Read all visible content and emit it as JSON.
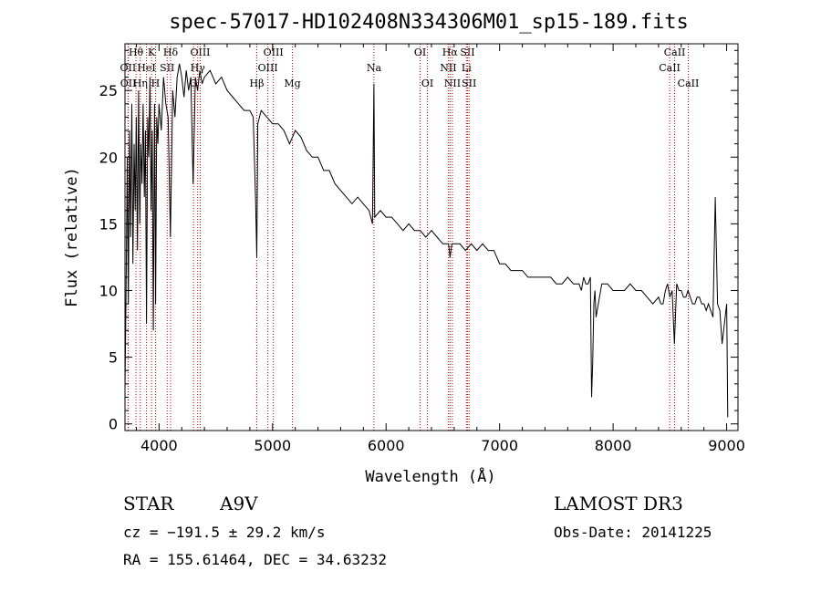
{
  "chart_data": {
    "type": "line",
    "title": "spec-57017-HD102408N334306M01_sp15-189.fits",
    "xlabel": "Wavelength (Å)",
    "ylabel": "Flux (relative)",
    "xlim": [
      3700,
      9100
    ],
    "ylim": [
      -0.5,
      28.5
    ],
    "x_ticks": [
      4000,
      5000,
      6000,
      7000,
      8000,
      9000
    ],
    "y_ticks": [
      0,
      5,
      10,
      15,
      20,
      25
    ],
    "series": [
      {
        "name": "spectrum",
        "x": [
          3700,
          3710,
          3720,
          3730,
          3740,
          3750,
          3760,
          3770,
          3780,
          3790,
          3800,
          3810,
          3820,
          3830,
          3840,
          3850,
          3860,
          3870,
          3880,
          3890,
          3900,
          3910,
          3920,
          3930,
          3940,
          3950,
          3960,
          3970,
          3980,
          3990,
          4000,
          4020,
          4040,
          4060,
          4080,
          4100,
          4120,
          4140,
          4160,
          4180,
          4200,
          4220,
          4240,
          4260,
          4280,
          4300,
          4320,
          4340,
          4360,
          4380,
          4400,
          4450,
          4500,
          4550,
          4600,
          4650,
          4700,
          4750,
          4800,
          4830,
          4850,
          4861,
          4870,
          4900,
          4950,
          5000,
          5050,
          5100,
          5150,
          5200,
          5250,
          5300,
          5350,
          5400,
          5450,
          5500,
          5550,
          5600,
          5650,
          5700,
          5750,
          5800,
          5850,
          5880,
          5893,
          5900,
          5950,
          6000,
          6050,
          6100,
          6150,
          6200,
          6250,
          6300,
          6350,
          6400,
          6450,
          6500,
          6550,
          6563,
          6580,
          6600,
          6650,
          6700,
          6750,
          6800,
          6850,
          6900,
          6950,
          7000,
          7050,
          7100,
          7150,
          7200,
          7250,
          7300,
          7350,
          7400,
          7450,
          7500,
          7550,
          7600,
          7650,
          7700,
          7720,
          7740,
          7760,
          7780,
          7800,
          7810,
          7820,
          7830,
          7840,
          7850,
          7900,
          7950,
          8000,
          8050,
          8100,
          8150,
          8200,
          8250,
          8300,
          8350,
          8400,
          8420,
          8440,
          8460,
          8480,
          8500,
          8520,
          8540,
          8560,
          8580,
          8600,
          8620,
          8640,
          8660,
          8680,
          8700,
          8720,
          8740,
          8760,
          8780,
          8800,
          8820,
          8840,
          8860,
          8880,
          8900,
          8920,
          8940,
          8960,
          8980,
          9000,
          9010
        ],
        "values": [
          2.5,
          10.0,
          20.0,
          9.0,
          22.0,
          14.0,
          24.0,
          12.0,
          21.0,
          16.0,
          23.0,
          13.0,
          25.0,
          15.0,
          21.0,
          18.0,
          24.0,
          17.0,
          22.0,
          7.5,
          23.0,
          20.0,
          26.0,
          16.0,
          22.0,
          7.0,
          24.0,
          9.0,
          23.0,
          21.0,
          24.0,
          22.0,
          26.0,
          24.0,
          23.0,
          14.0,
          25.0,
          23.0,
          26.0,
          27.0,
          26.0,
          24.5,
          26.5,
          25.0,
          26.0,
          18.0,
          26.0,
          25.0,
          26.5,
          25.5,
          26.0,
          26.5,
          25.5,
          26.0,
          25.0,
          24.5,
          24.0,
          23.5,
          23.5,
          23.0,
          17.0,
          12.5,
          22.5,
          23.5,
          23.0,
          22.5,
          22.5,
          22.0,
          21.0,
          22.0,
          21.5,
          20.5,
          20.0,
          20.0,
          19.0,
          19.0,
          18.0,
          17.5,
          17.0,
          16.5,
          17.0,
          16.5,
          16.0,
          15.0,
          25.5,
          15.5,
          16.0,
          15.5,
          15.5,
          15.0,
          14.5,
          15.0,
          14.5,
          14.5,
          14.0,
          14.5,
          14.0,
          13.5,
          13.5,
          12.5,
          13.5,
          13.5,
          13.5,
          13.0,
          13.5,
          13.0,
          13.5,
          13.0,
          13.0,
          12.0,
          12.0,
          11.5,
          11.5,
          11.5,
          11.0,
          11.0,
          11.0,
          11.0,
          11.0,
          10.5,
          10.5,
          11.0,
          10.5,
          10.5,
          10.0,
          11.0,
          10.5,
          10.5,
          11.0,
          2.0,
          4.5,
          9.0,
          10.0,
          8.0,
          10.5,
          10.5,
          10.0,
          10.0,
          10.0,
          10.5,
          10.0,
          10.0,
          9.5,
          9.0,
          9.5,
          9.0,
          9.0,
          10.0,
          10.5,
          9.5,
          10.0,
          6.0,
          10.5,
          10.0,
          10.0,
          9.5,
          9.5,
          10.0,
          9.5,
          9.0,
          9.0,
          9.5,
          9.5,
          9.0,
          9.0,
          8.5,
          9.0,
          8.5,
          8.0,
          17.0,
          9.0,
          8.5,
          6.0,
          7.5,
          9.0,
          0.5
        ]
      }
    ],
    "emission_lines": [
      {
        "label": "Hθ",
        "wavelength": 3797,
        "row": 1
      },
      {
        "label": "OII",
        "wavelength": 3727,
        "row": 2
      },
      {
        "label": "OII",
        "wavelength": 3729,
        "row": 3
      },
      {
        "label": "HeI",
        "wavelength": 3889,
        "row": 2
      },
      {
        "label": "Hη",
        "wavelength": 3835,
        "row": 3
      },
      {
        "label": "K",
        "wavelength": 3934,
        "row": 1
      },
      {
        "label": "H",
        "wavelength": 3969,
        "row": 3
      },
      {
        "label": "SII",
        "wavelength": 4072,
        "row": 2
      },
      {
        "label": "Hδ",
        "wavelength": 4102,
        "row": 1
      },
      {
        "label": "OIII",
        "wavelength": 4363,
        "row": 1
      },
      {
        "label": "Hγ",
        "wavelength": 4341,
        "row": 2
      },
      {
        "label": "G",
        "wavelength": 4304,
        "row": 3
      },
      {
        "label": "Hβ",
        "wavelength": 4861,
        "row": 3
      },
      {
        "label": "OIII",
        "wavelength": 5007,
        "row": 1
      },
      {
        "label": "OIII",
        "wavelength": 4959,
        "row": 2
      },
      {
        "label": "Mg",
        "wavelength": 5175,
        "row": 3
      },
      {
        "label": "Na",
        "wavelength": 5893,
        "row": 2
      },
      {
        "label": "OI",
        "wavelength": 6300,
        "row": 1
      },
      {
        "label": "OI",
        "wavelength": 6364,
        "row": 3
      },
      {
        "label": "Hα",
        "wavelength": 6563,
        "row": 1
      },
      {
        "label": "NII",
        "wavelength": 6548,
        "row": 2
      },
      {
        "label": "NII",
        "wavelength": 6584,
        "row": 3
      },
      {
        "label": "SII",
        "wavelength": 6717,
        "row": 1
      },
      {
        "label": "Li",
        "wavelength": 6708,
        "row": 2
      },
      {
        "label": "SII",
        "wavelength": 6731,
        "row": 3
      },
      {
        "label": "CaII",
        "wavelength": 8542,
        "row": 1
      },
      {
        "label": "CaII",
        "wavelength": 8498,
        "row": 2
      },
      {
        "label": "CaII",
        "wavelength": 8662,
        "row": 3
      }
    ]
  },
  "info": {
    "class": "STAR",
    "subclass": "A9V",
    "survey": "LAMOST DR3",
    "cz": "cz = −191.5 ± 29.2 km/s",
    "obs_date": "Obs-Date: 20141225",
    "coords": "RA = 155.61464, DEC =  34.63232"
  },
  "colors": {
    "spectrum": "#000000",
    "line_marker": "#c00000",
    "axis": "#000000"
  }
}
